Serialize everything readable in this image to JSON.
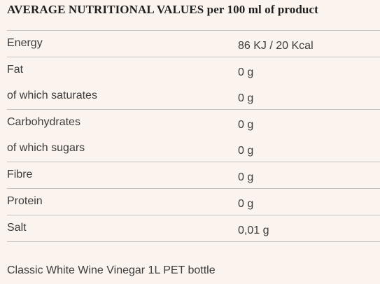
{
  "title": {
    "main": "AVERAGE NUTRITIONAL VALUES",
    "suffix": "per 100 ml of product"
  },
  "rows": [
    {
      "label": "Energy",
      "value": "86 KJ / 20 Kcal"
    },
    {
      "label": "Fat",
      "value": "0 g"
    },
    {
      "label": "of which saturates",
      "value": "0 g"
    },
    {
      "label": "Carbohydrates",
      "value": "0 g"
    },
    {
      "label": "of which sugars",
      "value": "0 g"
    },
    {
      "label": "Fibre",
      "value": "0 g"
    },
    {
      "label": "Protein",
      "value": "0 g"
    },
    {
      "label": "Salt",
      "value": "0,01 g"
    }
  ],
  "footer": "Classic White Wine Vinegar 1L PET bottle"
}
